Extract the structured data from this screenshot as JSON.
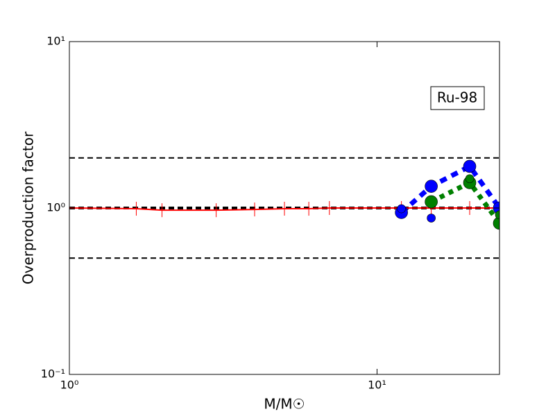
{
  "chart_data": {
    "type": "line",
    "xlabel": "M/M☉",
    "ylabel": "Overproduction factor",
    "annotation": "Ru-98",
    "xscale": "log",
    "yscale": "log",
    "xlim": [
      1,
      25
    ],
    "ylim": [
      0.1,
      10
    ],
    "xticks": [
      {
        "value": 1,
        "label": "10⁰"
      },
      {
        "value": 10,
        "label": "10¹"
      }
    ],
    "yticks": [
      {
        "value": 0.1,
        "label": "10⁻¹"
      },
      {
        "value": 1,
        "label": "10⁰"
      },
      {
        "value": 10,
        "label": "10¹"
      }
    ],
    "reference_lines": [
      0.5,
      1,
      2
    ],
    "series": [
      {
        "color": "#ff0000",
        "linestyle": "solid",
        "marker": "|",
        "x": [
          1,
          1.65,
          2,
          3,
          4,
          5,
          6,
          7,
          12,
          15,
          20,
          25
        ],
        "values": [
          1.0,
          0.99,
          0.97,
          0.97,
          0.98,
          0.99,
          0.99,
          1.0,
          1.0,
          1.0,
          1.0,
          1.0
        ]
      },
      {
        "color": "#0000ff",
        "linestyle": "dashed",
        "marker": "o",
        "x": [
          12,
          15,
          20,
          25
        ],
        "values": [
          0.94,
          1.35,
          1.78,
          1.0
        ]
      },
      {
        "color": "#0000ff",
        "linestyle": "none",
        "marker": "o",
        "x": [
          12,
          15
        ],
        "values": [
          0.99,
          0.87
        ]
      },
      {
        "color": "#008000",
        "linestyle": "dotted",
        "marker": "o",
        "x": [
          15,
          20,
          25
        ],
        "values": [
          1.09,
          1.42,
          0.81
        ]
      },
      {
        "color": "#008000",
        "linestyle": "none",
        "marker": "o",
        "x": [
          20,
          25
        ],
        "values": [
          1.5,
          0.91
        ]
      }
    ]
  }
}
